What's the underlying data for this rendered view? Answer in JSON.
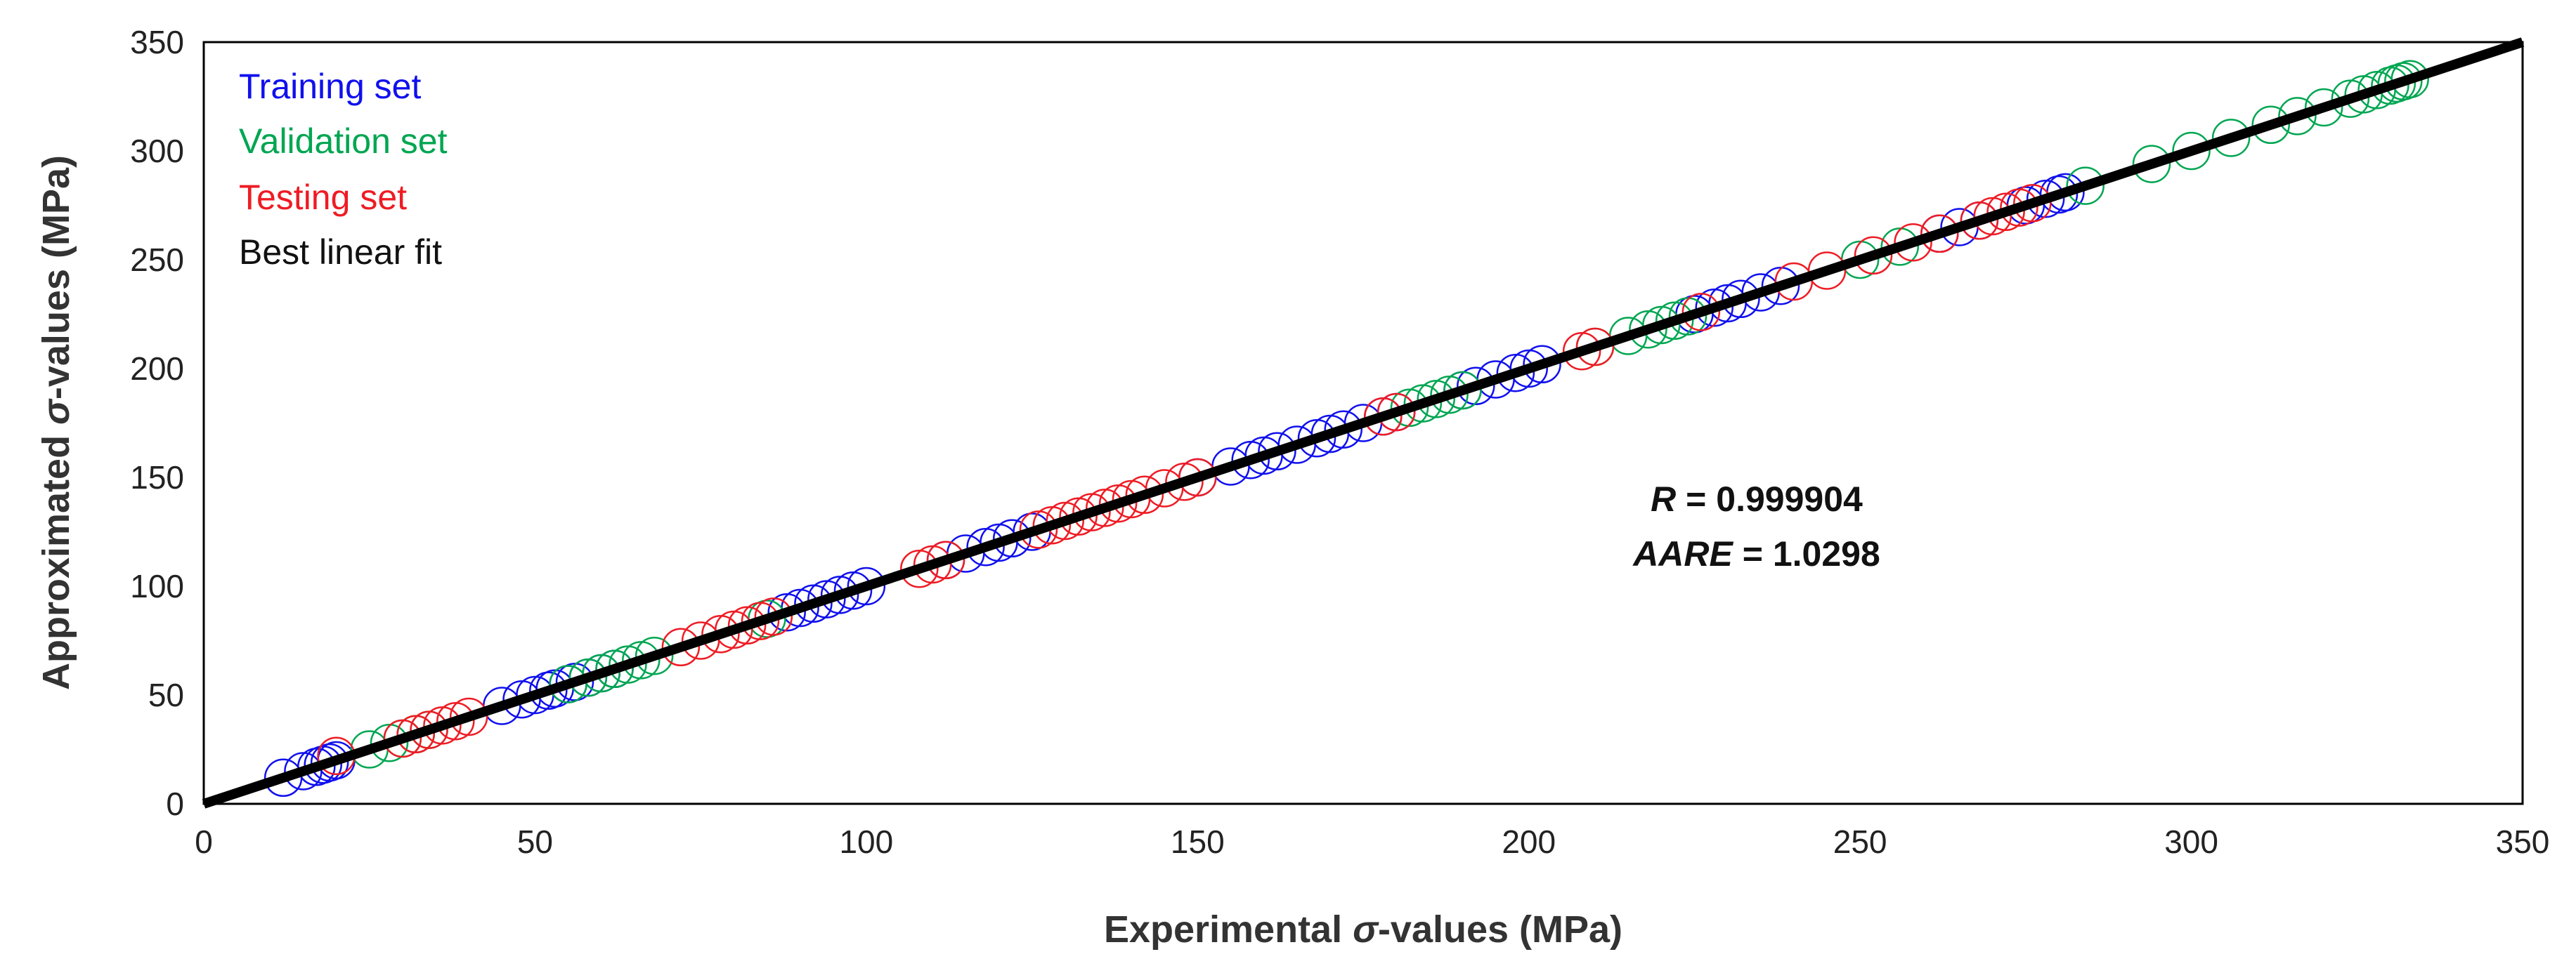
{
  "chart_data": {
    "type": "scatter",
    "title": "",
    "xlabel": {
      "prefix": "Experimental ",
      "symbol": "σ",
      "suffix": "-values (MPa)"
    },
    "ylabel": {
      "prefix": "Approximated ",
      "symbol": "σ",
      "suffix": "-values (MPa)"
    },
    "xlim": [
      0,
      350
    ],
    "ylim": [
      0,
      350
    ],
    "x_ticks": [
      0,
      50,
      100,
      150,
      200,
      250,
      300,
      350
    ],
    "y_ticks": [
      0,
      50,
      100,
      150,
      200,
      250,
      300,
      350
    ],
    "grid": false,
    "legend_position": "top-left",
    "colors": {
      "training": "#1010ee",
      "validation": "#00a651",
      "testing": "#ee1c24",
      "fit": "#000000"
    },
    "series": [
      {
        "name": "Training set",
        "marker": "open-circle",
        "x": [
          12,
          15,
          17,
          18,
          19,
          20,
          45,
          48,
          50,
          52,
          53,
          55,
          56,
          58,
          60,
          62,
          88,
          90,
          92,
          94,
          96,
          98,
          100,
          112,
          115,
          118,
          120,
          122,
          125,
          150,
          155,
          158,
          160,
          162,
          165,
          168,
          170,
          172,
          175,
          178,
          180,
          190,
          192,
          195,
          198,
          200,
          202,
          225,
          228,
          230,
          232,
          235,
          238,
          262,
          265,
          268,
          275,
          278,
          280,
          281
        ],
        "y": [
          12,
          15,
          17,
          18,
          19,
          20,
          45,
          48,
          50,
          52,
          53,
          55,
          56,
          58,
          60,
          62,
          88,
          90,
          92,
          94,
          96,
          98,
          100,
          112,
          115,
          118,
          120,
          122,
          125,
          150,
          155,
          158,
          160,
          162,
          165,
          168,
          170,
          172,
          175,
          178,
          180,
          190,
          192,
          195,
          198,
          200,
          202,
          225,
          228,
          230,
          232,
          235,
          238,
          262,
          265,
          268,
          275,
          278,
          280,
          281
        ]
      },
      {
        "name": "Validation set",
        "marker": "open-circle",
        "x": [
          25,
          28,
          30,
          32,
          34,
          55,
          58,
          60,
          62,
          64,
          66,
          68,
          85,
          182,
          184,
          186,
          188,
          190,
          210,
          215,
          218,
          220,
          222,
          224,
          250,
          256,
          284,
          294,
          300,
          306,
          312,
          316,
          320,
          324,
          326,
          328,
          330,
          331,
          332,
          333
        ],
        "y": [
          25,
          28,
          30,
          32,
          34,
          55,
          58,
          60,
          62,
          64,
          66,
          68,
          85,
          182,
          184,
          186,
          188,
          190,
          210,
          215,
          218,
          220,
          222,
          224,
          250,
          256,
          284,
          294,
          300,
          306,
          312,
          316,
          320,
          324,
          326,
          328,
          330,
          331,
          332,
          333
        ]
      },
      {
        "name": "Testing set",
        "marker": "open-circle",
        "x": [
          20,
          30,
          32,
          34,
          36,
          38,
          40,
          72,
          75,
          78,
          80,
          82,
          84,
          86,
          108,
          110,
          112,
          126,
          128,
          130,
          132,
          134,
          136,
          138,
          140,
          142,
          145,
          148,
          150,
          178,
          180,
          208,
          210,
          226,
          240,
          245,
          252,
          258,
          262,
          268,
          270,
          272,
          274,
          276
        ],
        "y": [
          22,
          30,
          32,
          34,
          36,
          38,
          40,
          72,
          75,
          78,
          80,
          82,
          84,
          86,
          108,
          110,
          112,
          126,
          128,
          130,
          132,
          134,
          136,
          138,
          140,
          142,
          145,
          148,
          150,
          178,
          180,
          208,
          210,
          226,
          240,
          245,
          252,
          258,
          262,
          268,
          270,
          272,
          274,
          276
        ]
      }
    ],
    "fit_line": {
      "name": "Best linear fit",
      "x": [
        0,
        350
      ],
      "y": [
        0,
        350
      ]
    },
    "annotations": [
      {
        "label": "R",
        "value": " = 0.999904"
      },
      {
        "label": "AARE",
        "value": " = 1.0298"
      }
    ]
  }
}
